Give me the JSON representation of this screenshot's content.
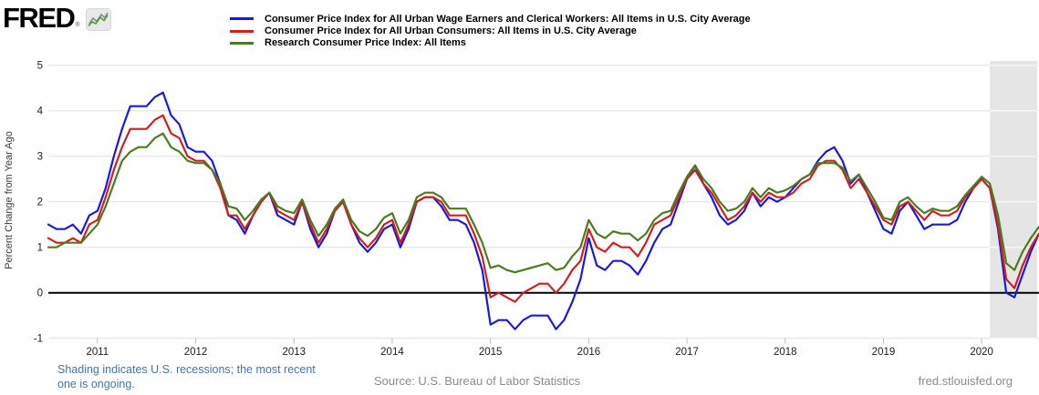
{
  "brand": {
    "logo_text": "FRED",
    "registered_mark": "®",
    "chart_icon": "line-chart-icon"
  },
  "footer": {
    "recession_note": "Shading indicates U.S. recessions; the most recent one is ongoing.",
    "source": "Source: U.S. Bureau of Labor Statistics",
    "site": "fred.stlouisfed.org"
  },
  "chart_data": {
    "type": "line",
    "ylabel": "Percent Change from Year Ago",
    "ylim": [
      -1,
      5
    ],
    "yticks": [
      -1,
      0,
      1,
      2,
      3,
      4,
      5
    ],
    "xticks": [
      "2011",
      "2012",
      "2013",
      "2014",
      "2015",
      "2016",
      "2017",
      "2018",
      "2019",
      "2020"
    ],
    "x_start": "2010-07",
    "x_end": "2020-08",
    "frequency": "monthly",
    "grid": true,
    "zero_line": true,
    "colors": {
      "grid": "#e0e0e0",
      "zero_line": "#000000",
      "tick": "#b4c0cc"
    },
    "recession_shading": {
      "start": "2020-02",
      "ongoing": true,
      "color": "#e5e5e5"
    },
    "series": [
      {
        "name": "Consumer Price Index for All Urban Wage Earners and Clerical Workers: All Items in U.S. City Average",
        "color": "#1a1ad6",
        "values": [
          1.5,
          1.4,
          1.4,
          1.5,
          1.3,
          1.7,
          1.8,
          2.3,
          3.0,
          3.6,
          4.1,
          4.1,
          4.1,
          4.3,
          4.4,
          3.9,
          3.7,
          3.2,
          3.1,
          3.1,
          2.9,
          2.4,
          1.7,
          1.6,
          1.3,
          1.7,
          2.0,
          2.2,
          1.7,
          1.6,
          1.5,
          2.0,
          1.4,
          1.0,
          1.3,
          1.8,
          2.0,
          1.5,
          1.1,
          0.9,
          1.1,
          1.4,
          1.5,
          1.0,
          1.4,
          2.0,
          2.1,
          2.1,
          1.9,
          1.6,
          1.6,
          1.5,
          1.1,
          0.5,
          -0.7,
          -0.6,
          -0.6,
          -0.8,
          -0.6,
          -0.5,
          -0.5,
          -0.5,
          -0.8,
          -0.6,
          -0.2,
          0.3,
          1.2,
          0.6,
          0.5,
          0.7,
          0.7,
          0.6,
          0.4,
          0.7,
          1.1,
          1.4,
          1.5,
          2.0,
          2.5,
          2.8,
          2.4,
          2.1,
          1.7,
          1.5,
          1.6,
          1.8,
          2.2,
          1.9,
          2.1,
          2.0,
          2.1,
          2.3,
          2.5,
          2.6,
          2.9,
          3.1,
          3.2,
          2.9,
          2.4,
          2.6,
          2.2,
          1.8,
          1.4,
          1.3,
          1.8,
          2.0,
          1.7,
          1.4,
          1.5,
          1.5,
          1.5,
          1.6,
          2.0,
          2.3,
          2.5,
          2.3,
          1.4,
          0.0,
          -0.1,
          0.4,
          0.9,
          1.3
        ]
      },
      {
        "name": "Consumer Price Index for All Urban Consumers: All Items in U.S. City Average",
        "color": "#cc2020",
        "values": [
          1.2,
          1.1,
          1.1,
          1.2,
          1.1,
          1.5,
          1.6,
          2.1,
          2.7,
          3.2,
          3.6,
          3.6,
          3.6,
          3.8,
          3.9,
          3.5,
          3.4,
          3.0,
          2.9,
          2.9,
          2.7,
          2.3,
          1.7,
          1.7,
          1.4,
          1.7,
          2.0,
          2.2,
          1.8,
          1.7,
          1.6,
          2.0,
          1.5,
          1.1,
          1.4,
          1.8,
          2.0,
          1.5,
          1.2,
          1.0,
          1.2,
          1.5,
          1.6,
          1.1,
          1.5,
          2.0,
          2.1,
          2.1,
          2.0,
          1.7,
          1.7,
          1.7,
          1.3,
          0.8,
          -0.1,
          0.0,
          -0.1,
          -0.2,
          0.0,
          0.1,
          0.2,
          0.2,
          0.0,
          0.2,
          0.5,
          0.7,
          1.4,
          1.0,
          0.9,
          1.1,
          1.0,
          1.0,
          0.8,
          1.1,
          1.5,
          1.6,
          1.7,
          2.1,
          2.5,
          2.7,
          2.4,
          2.2,
          1.9,
          1.6,
          1.7,
          1.9,
          2.2,
          2.0,
          2.2,
          2.1,
          2.1,
          2.2,
          2.4,
          2.5,
          2.8,
          2.9,
          2.9,
          2.7,
          2.3,
          2.5,
          2.2,
          1.9,
          1.6,
          1.5,
          1.9,
          2.0,
          1.8,
          1.6,
          1.8,
          1.7,
          1.7,
          1.8,
          2.1,
          2.3,
          2.5,
          2.3,
          1.5,
          0.3,
          0.1,
          0.6,
          1.0,
          1.3
        ]
      },
      {
        "name": "Research Consumer Price Index: All Items",
        "color": "#4a7c1f",
        "values": [
          1.0,
          1.0,
          1.1,
          1.1,
          1.1,
          1.3,
          1.5,
          1.9,
          2.4,
          2.9,
          3.1,
          3.2,
          3.2,
          3.4,
          3.5,
          3.2,
          3.1,
          2.9,
          2.85,
          2.85,
          2.7,
          2.4,
          1.9,
          1.85,
          1.6,
          1.8,
          2.05,
          2.2,
          1.9,
          1.8,
          1.75,
          2.05,
          1.6,
          1.25,
          1.5,
          1.85,
          2.05,
          1.6,
          1.35,
          1.25,
          1.4,
          1.65,
          1.75,
          1.3,
          1.6,
          2.1,
          2.2,
          2.2,
          2.1,
          1.85,
          1.85,
          1.85,
          1.5,
          1.1,
          0.55,
          0.6,
          0.5,
          0.45,
          0.5,
          0.55,
          0.6,
          0.65,
          0.5,
          0.55,
          0.8,
          1.0,
          1.6,
          1.3,
          1.2,
          1.35,
          1.3,
          1.3,
          1.15,
          1.3,
          1.6,
          1.75,
          1.8,
          2.2,
          2.55,
          2.8,
          2.5,
          2.3,
          2.0,
          1.8,
          1.85,
          2.0,
          2.3,
          2.1,
          2.3,
          2.2,
          2.25,
          2.35,
          2.5,
          2.6,
          2.85,
          2.85,
          2.85,
          2.75,
          2.45,
          2.6,
          2.3,
          2.0,
          1.65,
          1.6,
          2.0,
          2.1,
          1.9,
          1.75,
          1.85,
          1.8,
          1.8,
          1.9,
          2.15,
          2.35,
          2.55,
          2.4,
          1.7,
          0.65,
          0.5,
          0.9,
          1.2,
          1.45
        ]
      }
    ]
  }
}
